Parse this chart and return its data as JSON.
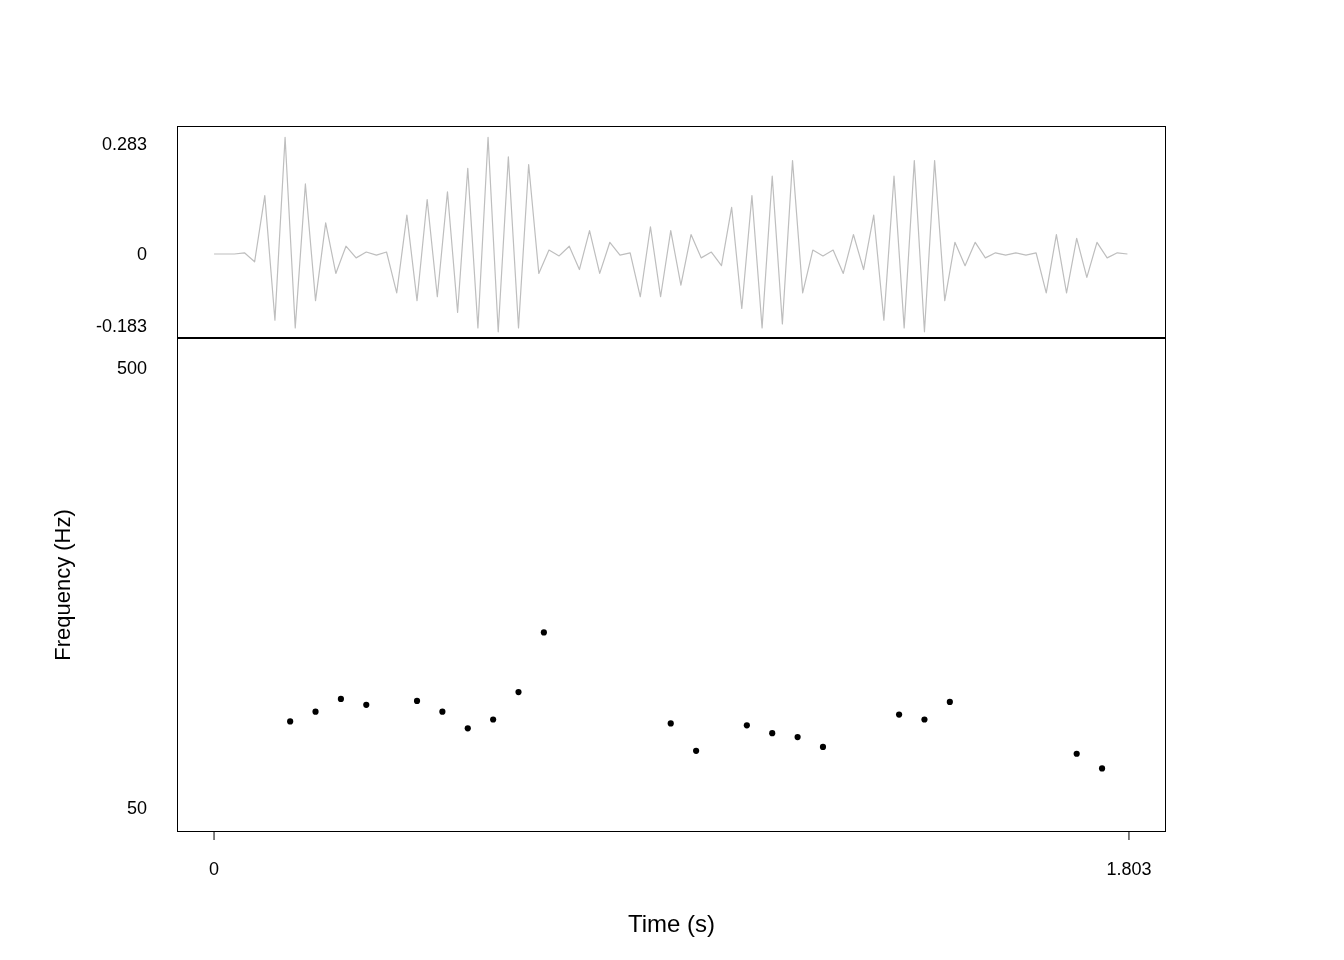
{
  "chart_data": [
    {
      "type": "line",
      "color": "#bebebe",
      "marker": "none",
      "tick_labels": "y",
      "xlim": [
        -0.073,
        1.876
      ],
      "ylim": [
        -0.216,
        0.329
      ],
      "yticks": [
        -0.183,
        0,
        0.283
      ],
      "x": [
        0,
        0.02,
        0.04,
        0.06,
        0.08,
        0.1,
        0.12,
        0.14,
        0.16,
        0.18,
        0.2,
        0.22,
        0.24,
        0.26,
        0.28,
        0.3,
        0.32,
        0.34,
        0.36,
        0.38,
        0.4,
        0.42,
        0.44,
        0.46,
        0.48,
        0.5,
        0.52,
        0.54,
        0.56,
        0.58,
        0.6,
        0.62,
        0.64,
        0.66,
        0.68,
        0.7,
        0.72,
        0.74,
        0.76,
        0.78,
        0.8,
        0.82,
        0.84,
        0.86,
        0.88,
        0.9,
        0.92,
        0.94,
        0.96,
        0.98,
        1,
        1.02,
        1.04,
        1.06,
        1.08,
        1.1,
        1.12,
        1.14,
        1.16,
        1.18,
        1.2,
        1.22,
        1.24,
        1.26,
        1.28,
        1.3,
        1.32,
        1.34,
        1.36,
        1.38,
        1.4,
        1.42,
        1.44,
        1.46,
        1.48,
        1.5,
        1.52,
        1.54,
        1.56,
        1.58,
        1.6,
        1.62,
        1.64,
        1.66,
        1.68,
        1.7,
        1.72,
        1.74,
        1.76,
        1.78,
        1.8
      ],
      "values": [
        0,
        0,
        0,
        0.003,
        -0.02,
        0.15,
        -0.17,
        0.3,
        -0.19,
        0.18,
        -0.12,
        0.08,
        -0.05,
        0.02,
        -0.01,
        0.005,
        -0.003,
        0.005,
        -0.1,
        0.1,
        -0.12,
        0.14,
        -0.11,
        0.16,
        -0.15,
        0.22,
        -0.19,
        0.3,
        -0.2,
        0.25,
        -0.19,
        0.23,
        -0.05,
        0.01,
        -0.005,
        0.02,
        -0.04,
        0.06,
        -0.05,
        0.03,
        -0.003,
        0.003,
        -0.11,
        0.07,
        -0.11,
        0.06,
        -0.08,
        0.05,
        -0.01,
        0.005,
        -0.03,
        0.12,
        -0.14,
        0.15,
        -0.19,
        0.2,
        -0.18,
        0.24,
        -0.1,
        0.01,
        -0.005,
        0.01,
        -0.05,
        0.05,
        -0.04,
        0.1,
        -0.17,
        0.2,
        -0.19,
        0.24,
        -0.2,
        0.24,
        -0.12,
        0.03,
        -0.03,
        0.03,
        -0.01,
        0.003,
        -0.003,
        0.003,
        -0.003,
        0.003,
        -0.1,
        0.05,
        -0.1,
        0.04,
        -0.06,
        0.03,
        -0.01,
        0.003,
        0
      ]
    },
    {
      "type": "scatter",
      "color": "#000000",
      "marker": "circle",
      "xlabel": "Time (s)",
      "ylabel": "Frequency (Hz)",
      "xlim": [
        -0.073,
        1.876
      ],
      "xticks": [
        0,
        1.803
      ],
      "ylim": [
        25,
        530
      ],
      "yticks": [
        50,
        500
      ],
      "x": [
        0.15,
        0.2,
        0.25,
        0.3,
        0.4,
        0.45,
        0.5,
        0.55,
        0.6,
        0.65,
        0.9,
        0.95,
        1.05,
        1.1,
        1.15,
        1.2,
        1.35,
        1.4,
        1.45,
        1.7,
        1.75
      ],
      "values": [
        138,
        148,
        161,
        155,
        159,
        148,
        131,
        140,
        168,
        229,
        136,
        108,
        134,
        126,
        122,
        112,
        145,
        140,
        158,
        105,
        90
      ]
    }
  ]
}
